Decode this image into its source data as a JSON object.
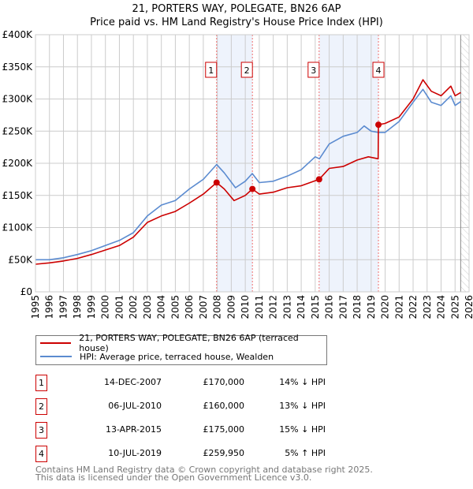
{
  "chart_data": {
    "type": "line",
    "title": "21, PORTERS WAY, POLEGATE, BN26 6AP",
    "subtitle": "Price paid vs. HM Land Registry's House Price Index (HPI)",
    "xlim": [
      1995,
      2026
    ],
    "ylim": [
      0,
      400000
    ],
    "y_ticks": [
      0,
      50000,
      100000,
      150000,
      200000,
      250000,
      300000,
      350000,
      400000
    ],
    "y_tick_labels": [
      "£0",
      "£50K",
      "£100K",
      "£150K",
      "£200K",
      "£250K",
      "£300K",
      "£350K",
      "£400K"
    ],
    "x_ticks": [
      "1995",
      "1996",
      "1997",
      "1998",
      "1999",
      "2000",
      "2001",
      "2002",
      "2003",
      "2004",
      "2005",
      "2006",
      "2007",
      "2008",
      "2009",
      "2010",
      "2011",
      "2012",
      "2013",
      "2014",
      "2015",
      "2016",
      "2017",
      "2018",
      "2019",
      "2020",
      "2021",
      "2022",
      "2023",
      "2024",
      "2025",
      "2026"
    ],
    "grid": true,
    "series": [
      {
        "name": "21, PORTERS WAY, POLEGATE, BN26 6AP (terraced house)",
        "color": "#cc0000",
        "x": [
          1995,
          1996,
          1997,
          1998,
          1999,
          2000,
          2001,
          2002,
          2003,
          2004,
          2005,
          2006,
          2007,
          2007.95,
          2008.5,
          2009.2,
          2010,
          2010.51,
          2011,
          2012,
          2013,
          2014,
          2015.28,
          2016,
          2017,
          2018,
          2018.8,
          2019.5,
          2019.52,
          2020,
          2021,
          2022,
          2022.7,
          2023.3,
          2024,
          2024.7,
          2025,
          2025.4
        ],
        "values": [
          43000,
          45000,
          48000,
          52000,
          58000,
          65000,
          72000,
          85000,
          108000,
          118000,
          125000,
          138000,
          152000,
          170000,
          160000,
          142000,
          150000,
          160000,
          152000,
          155000,
          162000,
          165000,
          175000,
          192000,
          195000,
          205000,
          210000,
          207000,
          259950,
          262000,
          272000,
          300000,
          330000,
          312000,
          305000,
          320000,
          305000,
          310000
        ]
      },
      {
        "name": "HPI: Average price, terraced house, Wealden",
        "color": "#5b8bd0",
        "x": [
          1995,
          1996,
          1997,
          1998,
          1999,
          2000,
          2001,
          2002,
          2003,
          2004,
          2005,
          2006,
          2007,
          2007.95,
          2008.5,
          2009.3,
          2010,
          2010.5,
          2011,
          2012,
          2013,
          2014,
          2015,
          2015.3,
          2016,
          2017,
          2018,
          2018.5,
          2019,
          2019.5,
          2020,
          2021,
          2022,
          2022.7,
          2023.3,
          2024,
          2024.7,
          2025,
          2025.4
        ],
        "values": [
          50000,
          50000,
          53000,
          58000,
          64000,
          72000,
          80000,
          92000,
          118000,
          135000,
          142000,
          160000,
          175000,
          198000,
          185000,
          162000,
          172000,
          184000,
          170000,
          172000,
          180000,
          190000,
          210000,
          207000,
          230000,
          242000,
          248000,
          258000,
          250000,
          248000,
          248000,
          265000,
          295000,
          315000,
          295000,
          290000,
          305000,
          290000,
          296000
        ]
      }
    ],
    "sales": [
      {
        "label": "1",
        "x": 2007.95,
        "value": 170000
      },
      {
        "label": "2",
        "x": 2010.51,
        "value": 160000
      },
      {
        "label": "3",
        "x": 2015.28,
        "value": 175000
      },
      {
        "label": "4",
        "x": 2019.52,
        "value": 259950
      }
    ],
    "shaded_ranges": [
      [
        2007.95,
        2010.51
      ],
      [
        2015.28,
        2019.52
      ]
    ],
    "hatched_from": 2025.4,
    "legend": "below"
  },
  "legend": {
    "property": "21, PORTERS WAY, POLEGATE, BN26 6AP (terraced house)",
    "hpi": "HPI: Average price, terraced house, Wealden"
  },
  "transactions": [
    {
      "num": "1",
      "date": "14-DEC-2007",
      "price": "£170,000",
      "hpi": "14% ↓ HPI"
    },
    {
      "num": "2",
      "date": "06-JUL-2010",
      "price": "£160,000",
      "hpi": "13% ↓ HPI"
    },
    {
      "num": "3",
      "date": "13-APR-2015",
      "price": "£175,000",
      "hpi": "15% ↓ HPI"
    },
    {
      "num": "4",
      "date": "10-JUL-2019",
      "price": "£259,950",
      "hpi": "5% ↑ HPI"
    }
  ],
  "footer": {
    "line1": "Contains HM Land Registry data © Crown copyright and database right 2025.",
    "line2": "This data is licensed under the Open Government Licence v3.0."
  }
}
